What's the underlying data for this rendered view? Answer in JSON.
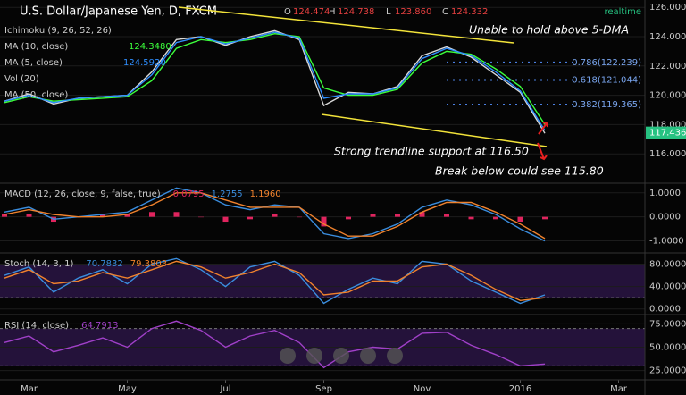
{
  "chart_data": [
    {
      "type": "line",
      "title": "U.S. Dollar/Japanese Yen, D, FXCM",
      "ohlc_labels": [
        "O",
        "H",
        "L",
        "C"
      ],
      "ohlc_values": [
        "124.474",
        "124.738",
        "123.860",
        "124.332"
      ],
      "status": "realtime",
      "other_indicators": [
        "Ichimoku (9, 26, 52, 26)",
        "Vol (20)",
        "MA (50, close)"
      ],
      "categories": [
        null,
        "Mar",
        null,
        null,
        null,
        "May",
        null,
        null,
        null,
        "Jul",
        null,
        null,
        null,
        "Sep",
        null,
        null,
        null,
        "Nov",
        null,
        null,
        null,
        "2016",
        null,
        null,
        null,
        "Mar"
      ],
      "series": [
        {
          "color": "#d8d8d8",
          "values": [
            119.6,
            120.1,
            119.4,
            119.8,
            119.9,
            120.0,
            121.6,
            123.8,
            124.0,
            123.4,
            124.0,
            124.4,
            123.8,
            119.3,
            120.2,
            120.1,
            120.6,
            122.7,
            123.3,
            122.6,
            121.4,
            120.2,
            117.4,
            null,
            null,
            null
          ]
        },
        {
          "name": "MA (10, close)",
          "legend_value": "124.3480",
          "color": "#3cff3c",
          "values": [
            119.5,
            119.9,
            119.6,
            119.7,
            119.8,
            119.9,
            121.0,
            123.2,
            123.8,
            123.6,
            123.8,
            124.2,
            124.0,
            120.5,
            120.0,
            120.0,
            120.4,
            122.2,
            123.0,
            122.8,
            121.8,
            120.6,
            118.0,
            null,
            null,
            null
          ]
        },
        {
          "name": "MA (5, close)",
          "legend_value": "124.5920",
          "color": "#2f8fff",
          "values": [
            119.6,
            120.0,
            119.5,
            119.8,
            119.9,
            120.0,
            121.4,
            123.6,
            124.0,
            123.5,
            123.9,
            124.3,
            123.9,
            119.8,
            120.1,
            120.1,
            120.5,
            122.5,
            123.2,
            122.7,
            121.6,
            120.3,
            117.6,
            null,
            null,
            null
          ]
        }
      ],
      "last_price": 117.436,
      "fib_levels": [
        {
          "value": 122.239,
          "label": "0.786(122.239)"
        },
        {
          "value": 121.044,
          "label": "0.618(121.044)"
        },
        {
          "value": 119.365,
          "label": "0.382(119.365)"
        }
      ],
      "annotations": [
        "Unable to hold above 5-DMA",
        "Strong trendline support at 116.50",
        "Break below could see 115.80"
      ],
      "ylim": [
        114,
        126.5
      ],
      "yticks": [
        {
          "value": 116,
          "label": "116.000"
        },
        {
          "value": 118,
          "label": "118.000"
        },
        {
          "value": 120,
          "label": "120.000"
        },
        {
          "value": 122,
          "label": "122.000"
        },
        {
          "value": 124,
          "label": "124.000"
        },
        {
          "value": 126,
          "label": "126.000"
        }
      ]
    },
    {
      "type": "line",
      "title": "MACD (12, 26, close, 9, false, true)",
      "series": [
        {
          "style": "histogram",
          "legend_value": "0.0795",
          "color": "#e0245e",
          "values": [
            0.1,
            0.1,
            -0.2,
            0,
            0.1,
            0.1,
            0.2,
            0.2,
            0,
            -0.2,
            -0.1,
            0.1,
            0,
            -0.4,
            -0.1,
            0.1,
            0.1,
            0.2,
            0.1,
            -0.1,
            -0.1,
            -0.2,
            -0.1,
            null,
            null,
            null
          ]
        },
        {
          "legend_value": "1.2755",
          "color": "#3a8dde",
          "values": [
            0.2,
            0.4,
            -0.1,
            0,
            0.1,
            0.2,
            0.7,
            1.2,
            1.0,
            0.5,
            0.3,
            0.5,
            0.4,
            -0.7,
            -0.9,
            -0.7,
            -0.3,
            0.4,
            0.7,
            0.5,
            0.1,
            -0.5,
            -1.0,
            null,
            null,
            null
          ]
        },
        {
          "legend_value": "1.1960",
          "color": "#f0822d",
          "values": [
            0.1,
            0.3,
            0.1,
            0,
            0,
            0.1,
            0.5,
            1.0,
            1.0,
            0.7,
            0.4,
            0.4,
            0.4,
            -0.3,
            -0.8,
            -0.8,
            -0.4,
            0.2,
            0.6,
            0.6,
            0.2,
            -0.3,
            -0.9,
            null,
            null,
            null
          ]
        }
      ],
      "ylim": [
        -1.5,
        1.4
      ],
      "yticks": [
        {
          "value": -1,
          "label": "-1.0000"
        },
        {
          "value": 0,
          "label": "0.0000"
        },
        {
          "value": 1,
          "label": "1.0000"
        }
      ]
    },
    {
      "type": "line",
      "title": "Stoch (14, 3, 1)",
      "series": [
        {
          "legend_value": "70.7832",
          "color": "#3a8dde",
          "values": [
            60,
            75,
            30,
            55,
            70,
            45,
            80,
            90,
            70,
            40,
            75,
            85,
            60,
            10,
            35,
            55,
            45,
            85,
            80,
            50,
            30,
            10,
            25,
            null,
            null,
            null
          ]
        },
        {
          "legend_value": "79.3803",
          "color": "#f0822d",
          "values": [
            55,
            70,
            45,
            50,
            65,
            55,
            70,
            85,
            75,
            55,
            65,
            80,
            65,
            25,
            30,
            50,
            50,
            75,
            80,
            60,
            35,
            15,
            20,
            null,
            null,
            null
          ]
        }
      ],
      "bands": [
        20,
        80
      ],
      "ylim": [
        -10,
        100
      ],
      "yticks": [
        {
          "value": 0,
          "label": "0.0000"
        },
        {
          "value": 40,
          "label": "40.0000"
        },
        {
          "value": 80,
          "label": "80.0000"
        }
      ]
    },
    {
      "type": "line",
      "title": "RSI (14, close)",
      "series": [
        {
          "legend_value": "64.7913",
          "color": "#a040c8",
          "values": [
            55,
            62,
            45,
            52,
            60,
            50,
            70,
            78,
            68,
            50,
            62,
            68,
            55,
            28,
            45,
            50,
            48,
            65,
            66,
            52,
            42,
            30,
            32,
            null,
            null,
            null
          ]
        }
      ],
      "bands": [
        30,
        70
      ],
      "ylim": [
        15,
        85
      ],
      "yticks": [
        {
          "value": 25,
          "label": "25.0000"
        },
        {
          "value": 50,
          "label": "50.0000"
        },
        {
          "value": 75,
          "label": "75.0000"
        }
      ]
    }
  ]
}
